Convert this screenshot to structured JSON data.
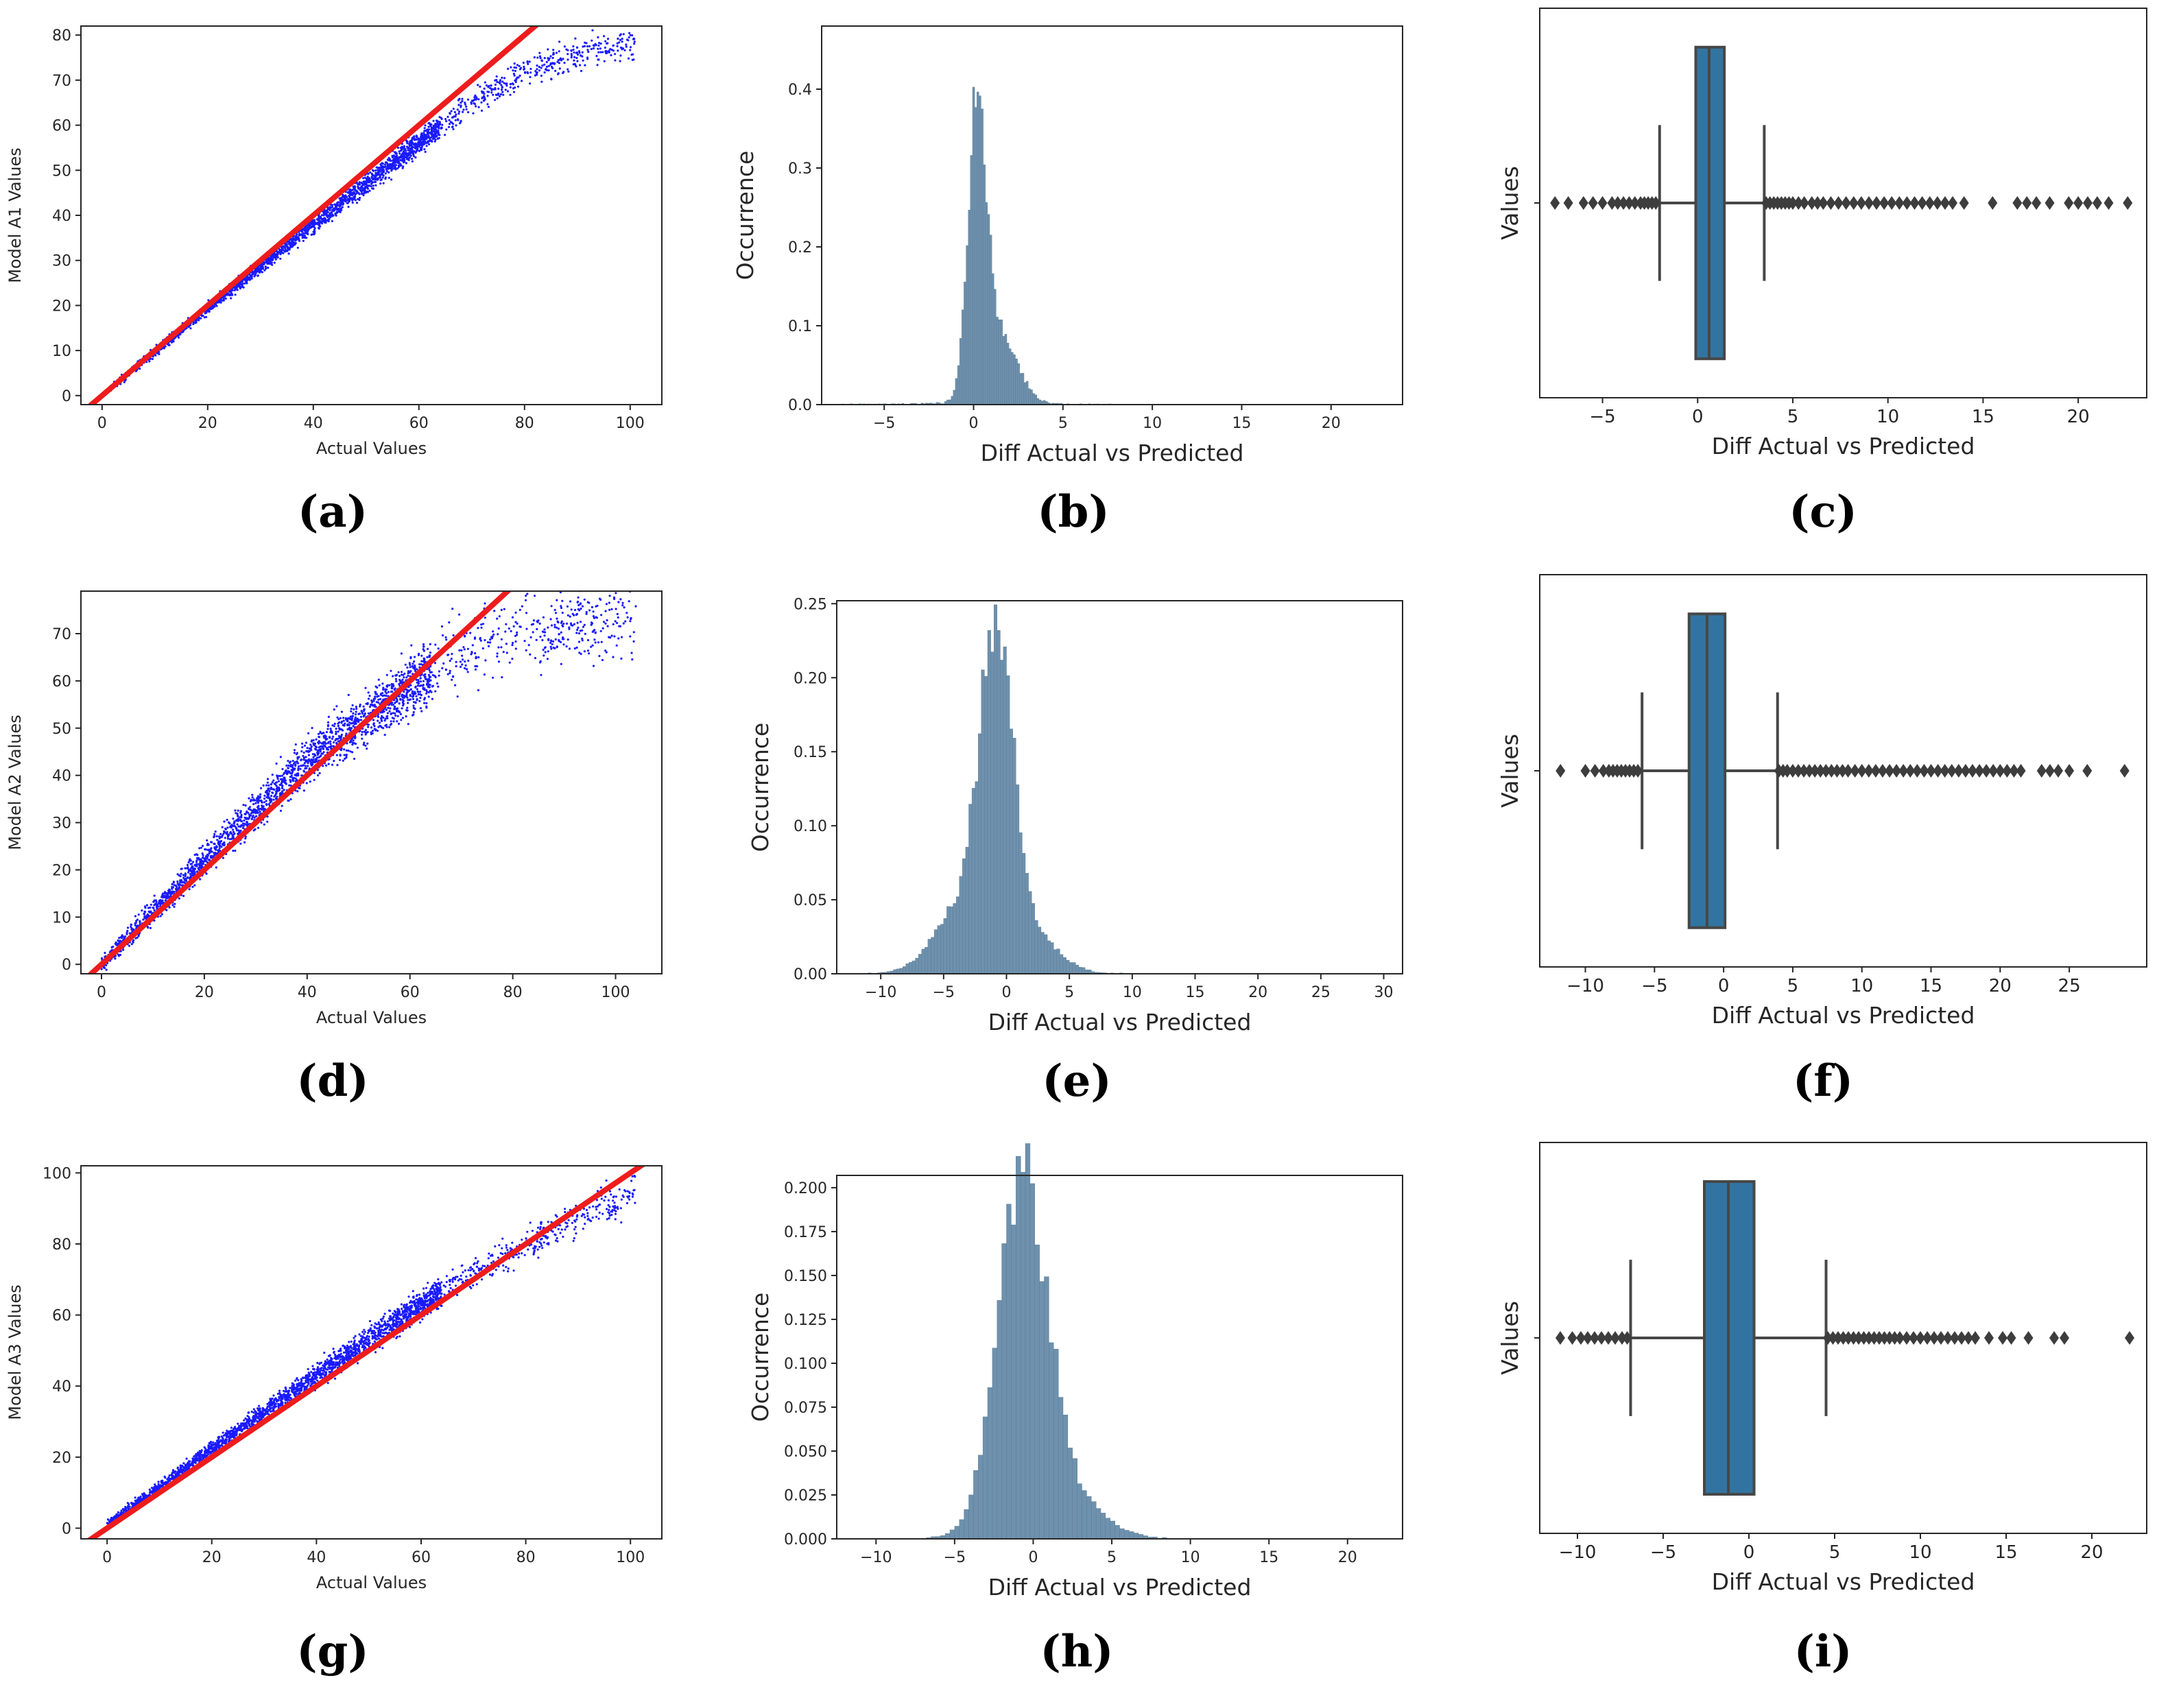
{
  "chart_data": [
    {
      "panel": "a",
      "caption": "(a)",
      "type": "scatter",
      "xlabel": "Actual Values",
      "ylabel": "Model A1 Values",
      "xlim": [
        -4,
        106
      ],
      "ylim": [
        -2,
        82
      ],
      "xticks": [
        0,
        20,
        40,
        60,
        80,
        100
      ],
      "yticks": [
        0,
        10,
        20,
        30,
        40,
        50,
        60,
        70,
        80
      ],
      "fit_line": {
        "slope": 1.0,
        "intercept": 0.0
      },
      "trend": {
        "x": [
          0,
          20,
          40,
          60,
          70,
          80,
          90,
          101
        ],
        "y": [
          0,
          19.5,
          38,
          56,
          65,
          72,
          76,
          78.5
        ]
      },
      "spread": 2.2
    },
    {
      "panel": "b",
      "caption": "(b)",
      "type": "bar",
      "subtype": "histogram",
      "xlabel": "Diff Actual vs Predicted",
      "ylabel": "Occurrence",
      "xlim": [
        -8.5,
        24
      ],
      "ylim": [
        0,
        0.48
      ],
      "xticks": [
        -5,
        0,
        5,
        10,
        15,
        20
      ],
      "yticks": [
        0.0,
        0.1,
        0.2,
        0.3,
        0.4
      ],
      "bin_width": 0.12,
      "range": [
        -7.5,
        22.5
      ],
      "components": [
        {
          "amp": 0.36,
          "mu": 0.2,
          "sigma": 0.5
        },
        {
          "amp": 0.09,
          "mu": 1.4,
          "sigma": 1.0
        }
      ],
      "tail": 0.004
    },
    {
      "panel": "c",
      "caption": "(c)",
      "type": "box",
      "xlabel": "Diff Actual vs Predicted",
      "ylabel": "Values",
      "xlim": [
        -8.3,
        23.6
      ],
      "xticks": [
        -5,
        0,
        5,
        10,
        15,
        20
      ],
      "q1": -0.1,
      "median": 0.6,
      "q3": 1.4,
      "whisker_low": -2.0,
      "whisker_high": 3.5,
      "outliers_low": [
        -7.5,
        -6.8,
        -6.0,
        -5.5,
        -5.0,
        -4.5,
        -4.2,
        -3.9,
        -3.6,
        -3.3,
        -3.0,
        -2.8,
        -2.6,
        -2.4,
        -2.2
      ],
      "outliers_high": [
        3.6,
        3.8,
        4,
        4.2,
        4.4,
        4.6,
        4.8,
        5,
        5.3,
        5.6,
        6,
        6.3,
        6.6,
        7,
        7.4,
        7.8,
        8.2,
        8.6,
        9,
        9.4,
        9.8,
        10.2,
        10.6,
        11,
        11.4,
        11.8,
        12.2,
        12.6,
        13,
        13.4,
        14,
        15.5,
        16.8,
        17.3,
        17.8,
        18.5,
        19.5,
        20,
        20.5,
        21,
        21.6,
        22.6
      ]
    },
    {
      "panel": "d",
      "caption": "(d)",
      "type": "scatter",
      "xlabel": "Actual Values",
      "ylabel": "Model A2 Values",
      "xlim": [
        -4,
        109
      ],
      "ylim": [
        -2,
        79
      ],
      "xticks": [
        0,
        20,
        40,
        60,
        80,
        100
      ],
      "yticks": [
        0,
        10,
        20,
        30,
        40,
        50,
        60,
        70
      ],
      "fit_line": {
        "slope": 1.0,
        "intercept": 0.0
      },
      "trend": {
        "x": [
          0,
          20,
          40,
          60,
          70,
          80,
          90,
          104
        ],
        "y": [
          0,
          22,
          43,
          59,
          66,
          70,
          72,
          74
        ]
      },
      "spread": 5.5
    },
    {
      "panel": "e",
      "caption": "(e)",
      "type": "bar",
      "subtype": "histogram",
      "xlabel": "Diff Actual vs Predicted",
      "ylabel": "Occurrence",
      "xlim": [
        -13.5,
        31.5
      ],
      "ylim": [
        0,
        0.252
      ],
      "xticks": [
        -10,
        -5,
        0,
        5,
        10,
        15,
        20,
        25,
        30
      ],
      "yticks": [
        0.0,
        0.05,
        0.1,
        0.15,
        0.2,
        0.25
      ],
      "bin_width": 0.25,
      "range": [
        -12,
        29
      ],
      "components": [
        {
          "amp": 0.21,
          "mu": -0.8,
          "sigma": 1.3
        },
        {
          "amp": 0.045,
          "mu": -3.5,
          "sigma": 2.2
        },
        {
          "amp": 0.025,
          "mu": 2.0,
          "sigma": 2.0
        }
      ],
      "tail": 0.004
    },
    {
      "panel": "f",
      "caption": "(f)",
      "type": "box",
      "xlabel": "Diff Actual vs Predicted",
      "ylabel": "Values",
      "xlim": [
        -13.3,
        30.6
      ],
      "xticks": [
        -10,
        -5,
        0,
        5,
        10,
        15,
        20,
        25
      ],
      "q1": -2.5,
      "median": -1.2,
      "q3": 0.1,
      "whisker_low": -5.9,
      "whisker_high": 3.9,
      "outliers_low": [
        -11.8,
        -10,
        -9.3,
        -8.7,
        -8.3,
        -8,
        -7.7,
        -7.4,
        -7.1,
        -6.8,
        -6.5,
        -6.2
      ],
      "outliers_high": [
        4,
        4.3,
        4.6,
        5,
        5.4,
        5.8,
        6.2,
        6.6,
        7,
        7.4,
        7.8,
        8.2,
        8.6,
        9,
        9.5,
        10,
        10.5,
        11,
        11.5,
        12,
        12.5,
        13,
        13.5,
        14,
        14.5,
        15,
        15.5,
        16,
        16.5,
        17,
        17.5,
        18,
        18.5,
        19,
        19.5,
        20,
        20.5,
        21,
        21.5,
        23,
        23.6,
        24.2,
        25,
        26.3,
        29
      ]
    },
    {
      "panel": "g",
      "caption": "(g)",
      "type": "scatter",
      "xlabel": "Actual Values",
      "ylabel": "Model A3 Values",
      "xlim": [
        -5,
        106
      ],
      "ylim": [
        -3,
        102
      ],
      "xticks": [
        0,
        20,
        40,
        60,
        80,
        100
      ],
      "yticks": [
        0,
        20,
        40,
        60,
        80,
        100
      ],
      "fit_line": {
        "slope": 1.0,
        "intercept": 0.0
      },
      "trend": {
        "x": [
          0,
          20,
          40,
          60,
          80,
          101
        ],
        "y": [
          1,
          22.5,
          43,
          63,
          80,
          95
        ]
      },
      "spread": 3.5
    },
    {
      "panel": "h",
      "caption": "(h)",
      "type": "bar",
      "subtype": "histogram",
      "xlabel": "Diff Actual vs Predicted",
      "ylabel": "Occurrence",
      "xlim": [
        -12.5,
        23.5
      ],
      "ylim": [
        0,
        0.207
      ],
      "xticks": [
        -10,
        -5,
        0,
        5,
        10,
        15,
        20
      ],
      "yticks": [
        0.0,
        0.025,
        0.05,
        0.075,
        0.1,
        0.125,
        0.15,
        0.175,
        0.2
      ],
      "bin_width": 0.3,
      "range": [
        -11,
        22
      ],
      "components": [
        {
          "amp": 0.2,
          "mu": -0.7,
          "sigma": 1.6
        },
        {
          "amp": 0.02,
          "mu": 2.5,
          "sigma": 2.0
        }
      ],
      "tail": 0.003
    },
    {
      "panel": "i",
      "caption": "(i)",
      "type": "box",
      "xlabel": "Diff Actual vs Predicted",
      "ylabel": "Values",
      "xlim": [
        -12.2,
        23.2
      ],
      "xticks": [
        -10,
        -5,
        0,
        5,
        10,
        15,
        20
      ],
      "q1": -2.6,
      "median": -1.2,
      "q3": 0.3,
      "whisker_low": -6.9,
      "whisker_high": 4.5,
      "outliers_low": [
        -11,
        -10.3,
        -9.8,
        -9.4,
        -9.0,
        -8.6,
        -8.2,
        -7.8,
        -7.4,
        -7.1
      ],
      "outliers_high": [
        4.6,
        4.9,
        5.2,
        5.5,
        5.8,
        6.1,
        6.4,
        6.7,
        7,
        7.3,
        7.6,
        7.9,
        8.2,
        8.5,
        8.8,
        9.2,
        9.6,
        10,
        10.4,
        10.8,
        11.2,
        11.6,
        12,
        12.4,
        12.8,
        13.2,
        14,
        14.8,
        15.3,
        16.3,
        17.8,
        18.4,
        22.2
      ]
    }
  ]
}
